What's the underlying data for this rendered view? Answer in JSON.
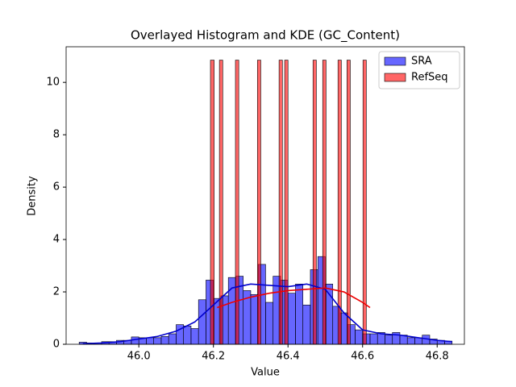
{
  "chart_data": {
    "type": "histogram",
    "title": "Overlayed Histogram and KDE (GC_Content)",
    "x_label": "Value",
    "y_label": "Density",
    "xlim": [
      45.805,
      46.873
    ],
    "xticks": [
      {
        "value": 46.0,
        "label": "46.0"
      },
      {
        "value": 46.2,
        "label": "46.2"
      },
      {
        "value": 46.4,
        "label": "46.4"
      },
      {
        "value": 46.6,
        "label": "46.6"
      },
      {
        "value": 46.8,
        "label": "46.8"
      }
    ],
    "ylim": [
      0,
      11.36
    ],
    "yticks": [
      0,
      2,
      4,
      6,
      8,
      10
    ],
    "legend": "upper right",
    "series": [
      {
        "name": "SRA",
        "color": "#0000ff",
        "bins": [
          45.84,
          45.86,
          45.88,
          45.9,
          45.92,
          45.94,
          45.96,
          45.98,
          46.0,
          46.02,
          46.04,
          46.06,
          46.08,
          46.1,
          46.12,
          46.14,
          46.16,
          46.18,
          46.2,
          46.22,
          46.24,
          46.26,
          46.28,
          46.3,
          46.32,
          46.34,
          46.36,
          46.38,
          46.4,
          46.42,
          46.44,
          46.46,
          46.48,
          46.5,
          46.52,
          46.54,
          46.56,
          46.58,
          46.6,
          46.62,
          46.64,
          46.66,
          46.68,
          46.7,
          46.72,
          46.74,
          46.76,
          46.78,
          46.8,
          46.82,
          46.84
        ],
        "values": [
          0.08,
          0.05,
          0.05,
          0.1,
          0.1,
          0.15,
          0.15,
          0.28,
          0.25,
          0.25,
          0.25,
          0.3,
          0.4,
          0.75,
          0.7,
          0.6,
          1.7,
          2.45,
          1.75,
          1.85,
          2.55,
          2.6,
          2.05,
          1.9,
          3.05,
          1.6,
          2.6,
          2.45,
          1.95,
          2.3,
          1.5,
          2.85,
          3.35,
          2.3,
          1.45,
          1.2,
          0.75,
          0.55,
          0.4,
          0.4,
          0.45,
          0.35,
          0.45,
          0.35,
          0.25,
          0.25,
          0.35,
          0.2,
          0.15,
          0.12
        ]
      },
      {
        "name": "RefSeq",
        "color": "#ff0000",
        "bins": [
          46.192,
          46.202,
          46.216,
          46.225,
          46.259,
          46.268,
          46.318,
          46.327,
          46.376,
          46.385,
          46.391,
          46.4,
          46.467,
          46.476,
          46.493,
          46.502,
          46.534,
          46.543,
          46.558,
          46.567,
          46.601,
          46.61
        ],
        "values": [
          10.85,
          0,
          10.85,
          0,
          10.85,
          0,
          10.85,
          0,
          10.85,
          0,
          10.85,
          0,
          10.85,
          0,
          10.85,
          0,
          10.85,
          0,
          10.85,
          0,
          10.85
        ]
      }
    ],
    "kde": [
      {
        "color": "#0000cc",
        "x": [
          45.85,
          45.9,
          45.95,
          46.0,
          46.05,
          46.1,
          46.15,
          46.2,
          46.25,
          46.3,
          46.35,
          46.4,
          46.45,
          46.5,
          46.55,
          46.6,
          46.65,
          46.7,
          46.75,
          46.8,
          46.84
        ],
        "values": [
          0.02,
          0.05,
          0.1,
          0.2,
          0.3,
          0.5,
          0.85,
          1.5,
          2.15,
          2.3,
          2.25,
          2.2,
          2.3,
          2.1,
          1.2,
          0.55,
          0.4,
          0.35,
          0.25,
          0.15,
          0.1
        ]
      },
      {
        "color": "#ee0000",
        "x": [
          46.21,
          46.25,
          46.3,
          46.35,
          46.4,
          46.45,
          46.5,
          46.55,
          46.6,
          46.62
        ],
        "values": [
          1.4,
          1.6,
          1.8,
          1.95,
          2.05,
          2.1,
          2.15,
          2.0,
          1.6,
          1.4
        ]
      }
    ]
  }
}
